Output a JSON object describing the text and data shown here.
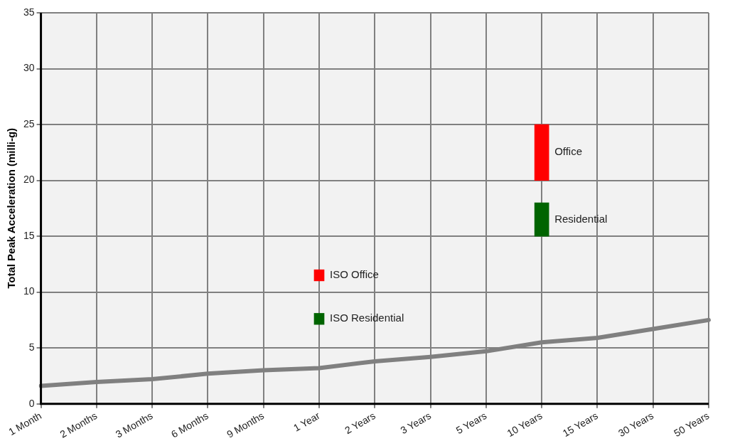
{
  "chart_data": {
    "type": "bar",
    "ylabel": "Total Peak Acceleration (milli-g)",
    "grid": true,
    "categories": [
      "1 Month",
      "2 Months",
      "3 Months",
      "6 Months",
      "9 Months",
      "1 Year",
      "2 Years",
      "3 Years",
      "5 Years",
      "10 Years",
      "15 Years",
      "30 Years",
      "50 Years"
    ],
    "ylim": [
      0,
      35
    ],
    "yticks": [
      0,
      5,
      10,
      15,
      20,
      25,
      30,
      35
    ],
    "series": [
      {
        "type": "line",
        "color": "#808080",
        "values": [
          1.6,
          1.95,
          2.2,
          2.7,
          3.0,
          3.2,
          3.8,
          4.2,
          4.7,
          5.5,
          5.9,
          6.7,
          7.5
        ]
      },
      {
        "name": "ISO Office",
        "color": "#ff0000",
        "base": [
          null,
          null,
          null,
          null,
          null,
          11,
          null,
          null,
          null,
          null,
          null,
          null,
          null
        ],
        "values": [
          null,
          null,
          null,
          null,
          null,
          1,
          null,
          null,
          null,
          null,
          null,
          null,
          null
        ]
      },
      {
        "name": "ISO Residential",
        "color": "#006400",
        "base": [
          null,
          null,
          null,
          null,
          null,
          7.1,
          null,
          null,
          null,
          null,
          null,
          null,
          null
        ],
        "values": [
          null,
          null,
          null,
          null,
          null,
          1,
          null,
          null,
          null,
          null,
          null,
          null,
          null
        ]
      },
      {
        "name": "Office",
        "color": "#ff0000",
        "base": [
          null,
          null,
          null,
          null,
          null,
          null,
          null,
          null,
          null,
          20,
          null,
          null,
          null
        ],
        "values": [
          null,
          null,
          null,
          null,
          null,
          null,
          null,
          null,
          null,
          5,
          null,
          null,
          null
        ]
      },
      {
        "name": "Residential",
        "color": "#006400",
        "base": [
          null,
          null,
          null,
          null,
          null,
          null,
          null,
          null,
          null,
          15,
          null,
          null,
          null
        ],
        "values": [
          null,
          null,
          null,
          null,
          null,
          null,
          null,
          null,
          null,
          3,
          null,
          null,
          null
        ]
      }
    ]
  }
}
